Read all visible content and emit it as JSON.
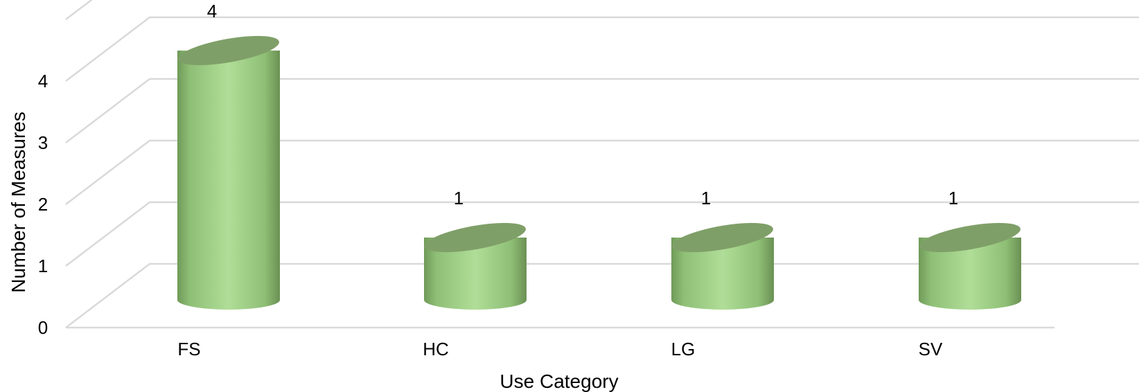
{
  "chart_data": {
    "type": "bar",
    "style": "3d-cylinder",
    "categories": [
      "FS",
      "HC",
      "LG",
      "SV"
    ],
    "values": [
      4,
      1,
      1,
      1
    ],
    "data_labels": [
      "4",
      "1",
      "1",
      "1"
    ],
    "y_ticks": [
      "0",
      "1",
      "2",
      "3",
      "4"
    ],
    "ylim": [
      0,
      5
    ],
    "xlabel": "Use Category",
    "ylabel": "Number of Measures",
    "title": "",
    "grid": true,
    "legend": "none",
    "colors": {
      "bar_light": "#aedc94",
      "bar_dark": "#6f9a58",
      "bar_top": "#7f9f68",
      "grid": "#d9d9d9"
    }
  }
}
